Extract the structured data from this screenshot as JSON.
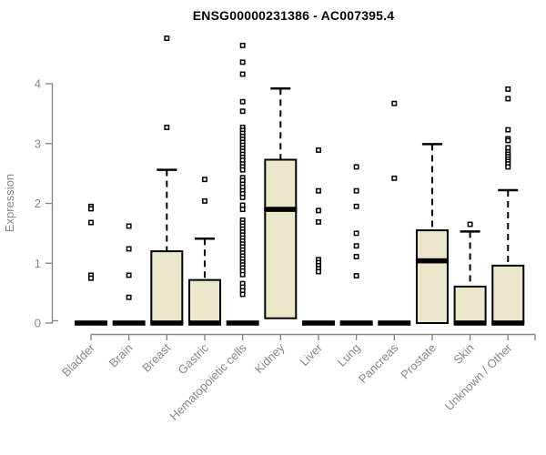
{
  "chart_data": {
    "type": "boxplot",
    "title": "ENSG00000231386 - AC007395.4",
    "ylabel": "Expression",
    "ylim": [
      0,
      4
    ],
    "yticks": [
      0,
      1,
      2,
      3,
      4
    ],
    "grid": false,
    "axis_color": "#878787",
    "box_fill": "#ECE6CA",
    "box_stroke": "#000000",
    "categories": [
      "Bladder",
      "Brain",
      "Breast",
      "Gastric",
      "Hematopoietic cells",
      "Kidney",
      "Liver",
      "Lung",
      "Pancreas",
      "Prostate",
      "Skin",
      "Unknown / Other"
    ],
    "series": [
      {
        "category": "Bladder",
        "collapsed": true,
        "q1": 0,
        "median": 0,
        "q3": 0,
        "whisker_high": 0,
        "outliers": [
          1.95,
          1.91,
          1.68,
          0.8,
          0.75
        ]
      },
      {
        "category": "Brain",
        "collapsed": true,
        "q1": 0,
        "median": 0,
        "q3": 0,
        "whisker_high": 0,
        "outliers": [
          1.62,
          1.24,
          0.8,
          0.43
        ]
      },
      {
        "category": "Breast",
        "collapsed": false,
        "q1": 0,
        "median": 0,
        "q3": 1.2,
        "whisker_high": 2.56,
        "outliers": [
          4.76,
          3.27
        ]
      },
      {
        "category": "Gastric",
        "collapsed": false,
        "q1": 0,
        "median": 0,
        "q3": 0.72,
        "whisker_high": 1.41,
        "outliers": [
          2.4,
          2.04
        ]
      },
      {
        "category": "Hematopoietic cells",
        "collapsed": true,
        "q1": 0,
        "median": 0,
        "q3": 0,
        "whisker_high": 0,
        "outliers": [
          4.64,
          4.36,
          4.16,
          3.7,
          3.54,
          3.27,
          3.22,
          3.17,
          3.12,
          3.07,
          3.02,
          2.97,
          2.92,
          2.87,
          2.82,
          2.77,
          2.72,
          2.66,
          2.61,
          2.56,
          2.43,
          2.38,
          2.32,
          2.27,
          2.21,
          2.16,
          2.1,
          1.97,
          1.9,
          1.72,
          1.67,
          1.62,
          1.57,
          1.52,
          1.47,
          1.42,
          1.37,
          1.32,
          1.27,
          1.22,
          1.17,
          1.12,
          1.07,
          1.02,
          0.97,
          0.92,
          0.87,
          0.81,
          0.66,
          0.6,
          0.54,
          0.48
        ]
      },
      {
        "category": "Kidney",
        "collapsed": false,
        "q1": 0.08,
        "median": 1.9,
        "q3": 2.73,
        "whisker_high": 3.92,
        "outliers": []
      },
      {
        "category": "Liver",
        "collapsed": true,
        "q1": 0,
        "median": 0,
        "q3": 0,
        "whisker_high": 0,
        "outliers": [
          2.89,
          2.21,
          1.88,
          1.69,
          1.06,
          1.01,
          0.96,
          0.91,
          0.86
        ]
      },
      {
        "category": "Lung",
        "collapsed": true,
        "q1": 0,
        "median": 0,
        "q3": 0,
        "whisker_high": 0,
        "outliers": [
          2.61,
          2.21,
          1.95,
          1.5,
          1.29,
          1.11,
          0.79
        ]
      },
      {
        "category": "Pancreas",
        "collapsed": true,
        "q1": 0,
        "median": 0,
        "q3": 0,
        "whisker_high": 0,
        "outliers": [
          3.67,
          2.42
        ]
      },
      {
        "category": "Prostate",
        "collapsed": false,
        "q1": 0,
        "median": 1.04,
        "q3": 1.55,
        "whisker_high": 2.99,
        "outliers": []
      },
      {
        "category": "Skin",
        "collapsed": false,
        "q1": 0,
        "median": 0,
        "q3": 0.61,
        "whisker_high": 1.53,
        "outliers": [
          1.65
        ]
      },
      {
        "category": "Unknown / Other",
        "collapsed": false,
        "q1": 0,
        "median": 0,
        "q3": 0.96,
        "whisker_high": 2.22,
        "outliers": [
          3.91,
          3.75,
          3.23,
          3.08,
          3.05,
          2.93,
          2.86,
          2.82,
          2.78,
          2.74,
          2.7,
          2.66,
          2.61
        ]
      }
    ]
  }
}
